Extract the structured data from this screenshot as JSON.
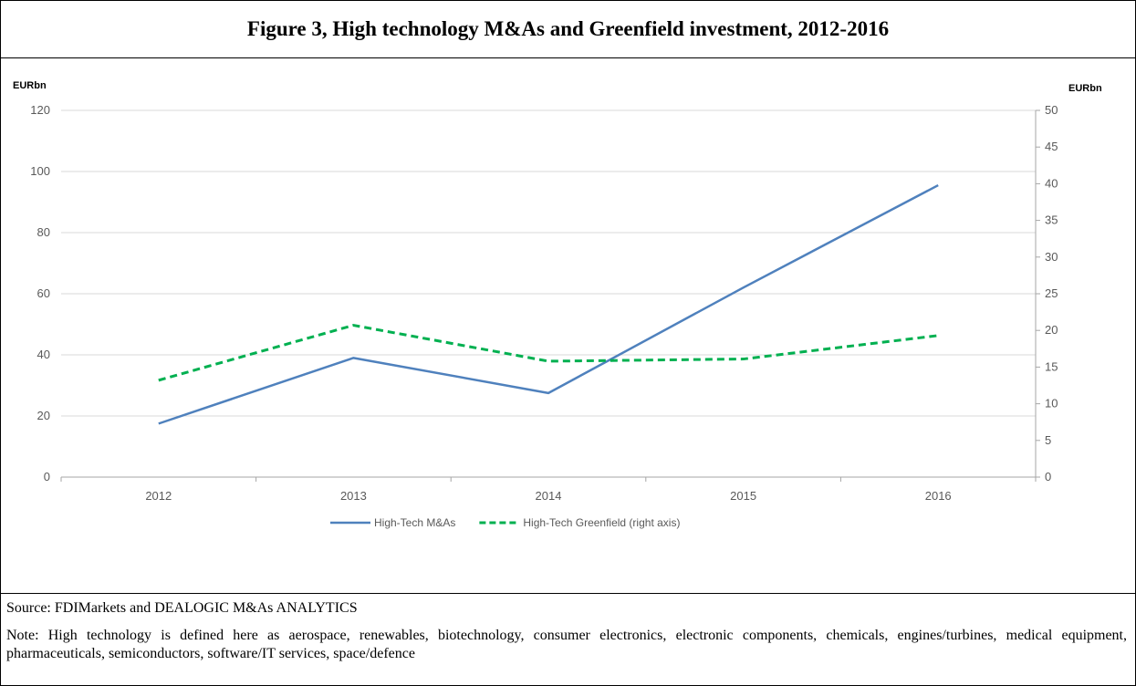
{
  "figure": {
    "title": "Figure 3, High technology M&As and Greenfield investment, 2012-2016",
    "source": "Source: FDIMarkets and DEALOGIC M&As ANALYTICS",
    "note": "Note: High technology is defined here as aerospace, renewables, biotechnology, consumer electronics, electronic components, chemicals, engines/turbines, medical equipment, pharmaceuticals, semiconductors, software/IT services, space/defence"
  },
  "chart_data": {
    "type": "line",
    "title": "",
    "x": [
      "2012",
      "2013",
      "2014",
      "2015",
      "2016"
    ],
    "y_left": {
      "label": "EURbn",
      "range": [
        0,
        120
      ],
      "ticks": [
        0,
        20,
        40,
        60,
        80,
        100,
        120
      ]
    },
    "y_right": {
      "label": "EURbn",
      "range": [
        0,
        50
      ],
      "ticks": [
        0,
        5,
        10,
        15,
        20,
        25,
        30,
        35,
        40,
        45,
        50
      ]
    },
    "grid": true,
    "legend_position": "bottom",
    "series": [
      {
        "name": "High-Tech M&As",
        "axis": "left",
        "style": "solid",
        "color": "#4f81bd",
        "values": [
          17.5,
          39,
          27.5,
          62,
          95.5
        ]
      },
      {
        "name": "High-Tech Greenfield (right axis)",
        "axis": "right",
        "style": "dashed",
        "color": "#00b050",
        "values": [
          13.2,
          20.7,
          15.8,
          16.1,
          19.3
        ]
      }
    ]
  }
}
